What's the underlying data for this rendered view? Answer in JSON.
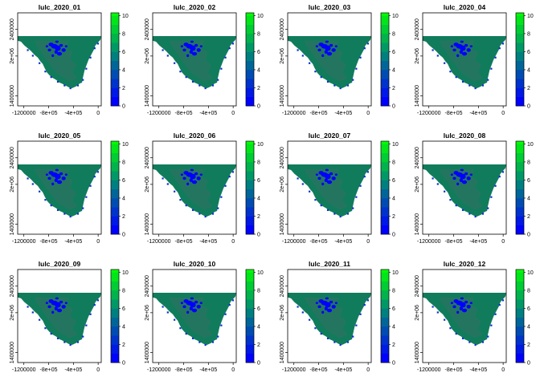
{
  "chart_data": {
    "type": "raster-map",
    "grid": {
      "rows": 3,
      "cols": 4
    },
    "panels": [
      {
        "title": "lulc_2020_01"
      },
      {
        "title": "lulc_2020_02"
      },
      {
        "title": "lulc_2020_03"
      },
      {
        "title": "lulc_2020_04"
      },
      {
        "title": "lulc_2020_05"
      },
      {
        "title": "lulc_2020_06"
      },
      {
        "title": "lulc_2020_07"
      },
      {
        "title": "lulc_2020_08"
      },
      {
        "title": "lulc_2020_09"
      },
      {
        "title": "lulc_2020_10"
      },
      {
        "title": "lulc_2020_11"
      },
      {
        "title": "lulc_2020_12"
      }
    ],
    "x_ticks": [
      {
        "value": -1200000,
        "label": "-1200000"
      },
      {
        "value": -800000,
        "label": "-8e+05"
      },
      {
        "value": -400000,
        "label": "-4e+05"
      },
      {
        "value": 0,
        "label": "0"
      }
    ],
    "y_ticks": [
      {
        "value": 1400000,
        "label": "1400000"
      },
      {
        "value": 2000000,
        "label": "2e+06"
      },
      {
        "value": 2400000,
        "label": "2400000"
      }
    ],
    "xlim": [
      -1300000,
      50000
    ],
    "ylim": [
      1250000,
      2650000
    ],
    "legend": {
      "range": [
        0,
        10
      ],
      "ticks": [
        0,
        2,
        4,
        6,
        8,
        10
      ],
      "steps": [
        {
          "from": 0,
          "to": 1,
          "color": "#0000ff"
        },
        {
          "from": 1,
          "to": 2,
          "color": "#0019e6"
        },
        {
          "from": 2,
          "to": 3,
          "color": "#0033cc"
        },
        {
          "from": 3,
          "to": 4,
          "color": "#004cb3"
        },
        {
          "from": 4,
          "to": 5,
          "color": "#006699"
        },
        {
          "from": 5,
          "to": 6,
          "color": "#007f80"
        },
        {
          "from": 6,
          "to": 7,
          "color": "#009966"
        },
        {
          "from": 7,
          "to": 8,
          "color": "#00b34c"
        },
        {
          "from": 8,
          "to": 9,
          "color": "#00cc33"
        },
        {
          "from": 9,
          "to": 10,
          "color": "#00e619"
        },
        {
          "from": 10,
          "to": 10.3,
          "color": "#00ff00"
        }
      ]
    },
    "map_colors": {
      "land_main": "#107c5c",
      "land_secondary": "#24755f",
      "water": "#0000ff",
      "water_dark": "#0a2fd0"
    }
  }
}
